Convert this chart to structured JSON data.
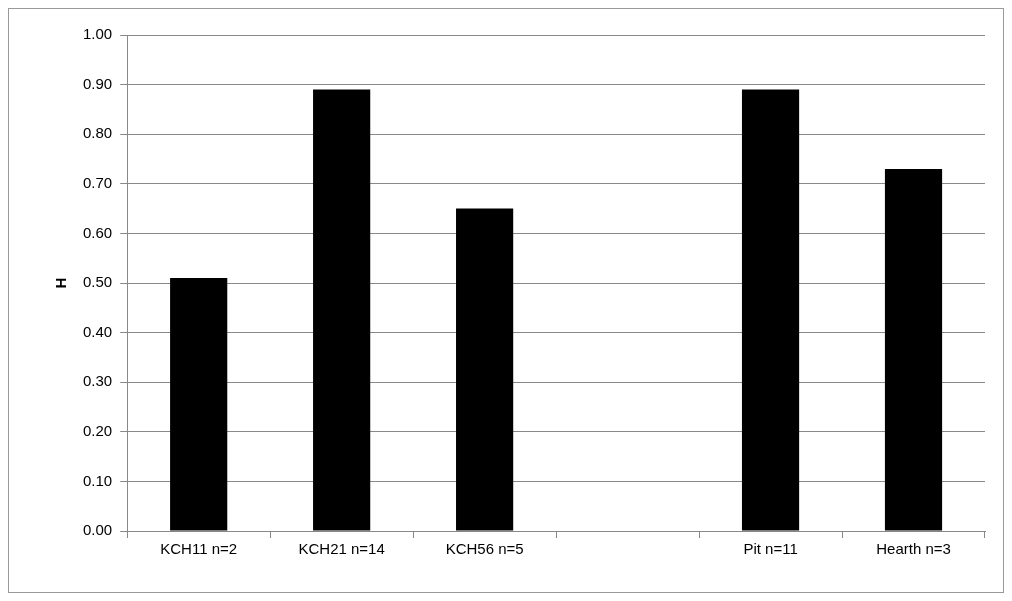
{
  "chart_data": {
    "type": "bar",
    "ylabel": "H",
    "categories": [
      "KCH11 n=2",
      "KCH21 n=14",
      "KCH56 n=5",
      null,
      "Pit n=11",
      "Hearth n=3"
    ],
    "values": [
      0.51,
      0.89,
      0.65,
      null,
      0.89,
      0.73
    ],
    "color": "#000000",
    "ylim": [
      0,
      1
    ],
    "yticks": [
      {
        "value": 0,
        "label": "0.00"
      },
      {
        "value": 0.1,
        "label": "0.10"
      },
      {
        "value": 0.2,
        "label": "0.20"
      },
      {
        "value": 0.3,
        "label": "0.30"
      },
      {
        "value": 0.4,
        "label": "0.40"
      },
      {
        "value": 0.5,
        "label": "0.50"
      },
      {
        "value": 0.6,
        "label": "0.60"
      },
      {
        "value": 0.7,
        "label": "0.70"
      },
      {
        "value": 0.8,
        "label": "0.80"
      },
      {
        "value": 0.9,
        "label": "0.90"
      },
      {
        "value": 1,
        "label": "1.00"
      }
    ],
    "grid": "y",
    "legend": false
  }
}
